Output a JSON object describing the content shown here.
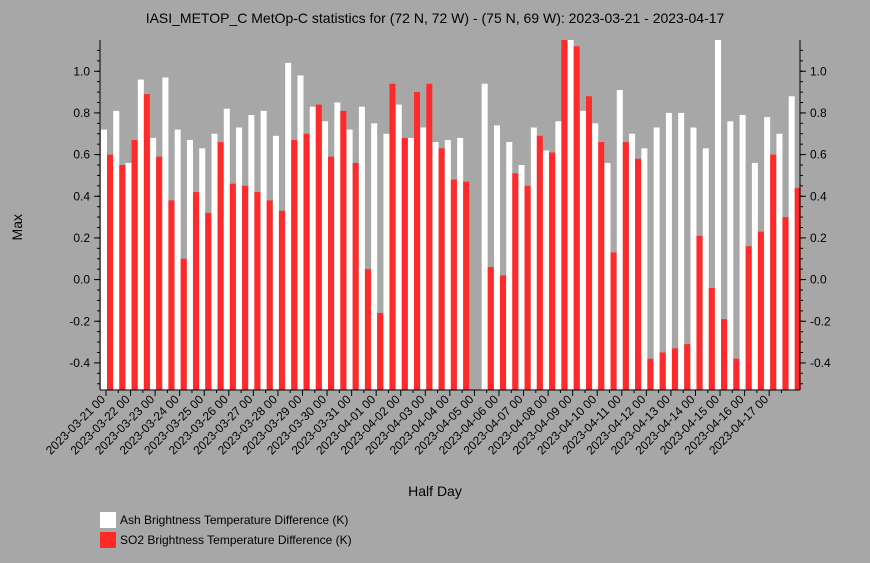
{
  "chart_data": {
    "type": "bar",
    "title": "IASI_METOP_C MetOp-C statistics for (72 N, 72 W) - (75 N, 69 W): 2023-03-21 - 2023-04-17",
    "xlabel": "Half Day",
    "ylabel": "Max",
    "ylim": [
      -0.53,
      1.15
    ],
    "yticks": [
      "-0.4",
      "-0.2",
      "0.0",
      "0.2",
      "0.4",
      "0.6",
      "0.8",
      "1.0"
    ],
    "yticks_values": [
      -0.4,
      -0.2,
      0.0,
      0.2,
      0.4,
      0.6,
      0.8,
      1.0
    ],
    "x_tick_labels": [
      "2023-03-21 00",
      "2023-03-22 00",
      "2023-03-23 00",
      "2023-03-24 00",
      "2023-03-25 00",
      "2023-03-26 00",
      "2023-03-27 00",
      "2023-03-28 00",
      "2023-03-29 00",
      "2023-03-30 00",
      "2023-03-31 00",
      "2023-04-01 00",
      "2023-04-02 00",
      "2023-04-03 00",
      "2023-04-04 00",
      "2023-04-05 00",
      "2023-04-06 00",
      "2023-04-07 00",
      "2023-04-08 00",
      "2023-04-09 00",
      "2023-04-10 00",
      "2023-04-11 00",
      "2023-04-12 00",
      "2023-04-13 00",
      "2023-04-14 00",
      "2023-04-15 00",
      "2023-04-16 00",
      "2023-04-17 00"
    ],
    "grid": false,
    "legend_position": "bottom-left",
    "series": [
      {
        "name": "Ash Brightness Temperature Difference (K)",
        "color": "#ffffff",
        "values": [
          0.72,
          0.81,
          0.56,
          0.96,
          0.68,
          0.97,
          0.72,
          0.67,
          0.63,
          0.7,
          0.82,
          0.73,
          0.79,
          0.81,
          0.69,
          1.04,
          0.98,
          0.83,
          0.76,
          0.85,
          0.72,
          0.83,
          0.75,
          0.7,
          0.84,
          0.68,
          0.73,
          0.66,
          0.67,
          0.68,
          null,
          0.94,
          0.74,
          0.66,
          0.55,
          0.73,
          0.62,
          0.76,
          1.15,
          0.81,
          0.75,
          0.56,
          0.91,
          0.7,
          0.63,
          0.73,
          0.8,
          0.8,
          0.73,
          0.63,
          1.15,
          0.76,
          0.79,
          0.56,
          0.78,
          0.7,
          0.88
        ]
      },
      {
        "name": "SO2 Brightness Temperature Difference (K)",
        "color": "#ff2a2a",
        "values": [
          0.6,
          0.55,
          0.67,
          0.89,
          0.59,
          0.38,
          0.1,
          0.42,
          0.32,
          0.66,
          0.46,
          0.45,
          0.42,
          0.38,
          0.33,
          0.67,
          0.7,
          0.84,
          0.59,
          0.81,
          0.56,
          0.05,
          -0.16,
          0.94,
          0.68,
          0.9,
          0.94,
          0.63,
          0.48,
          0.47,
          null,
          0.06,
          0.02,
          0.51,
          0.45,
          0.69,
          0.61,
          1.15,
          1.12,
          0.88,
          0.66,
          0.13,
          0.66,
          0.58,
          -0.38,
          -0.35,
          -0.33,
          -0.31,
          0.21,
          -0.04,
          -0.19,
          -0.38,
          0.16,
          0.23,
          0.6,
          0.3,
          0.44
        ]
      }
    ]
  },
  "legend": {
    "items": [
      {
        "label": "Ash Brightness Temperature Difference (K)",
        "color": "#ffffff"
      },
      {
        "label": "SO2 Brightness Temperature Difference (K)",
        "color": "#ff2a2a"
      }
    ]
  }
}
